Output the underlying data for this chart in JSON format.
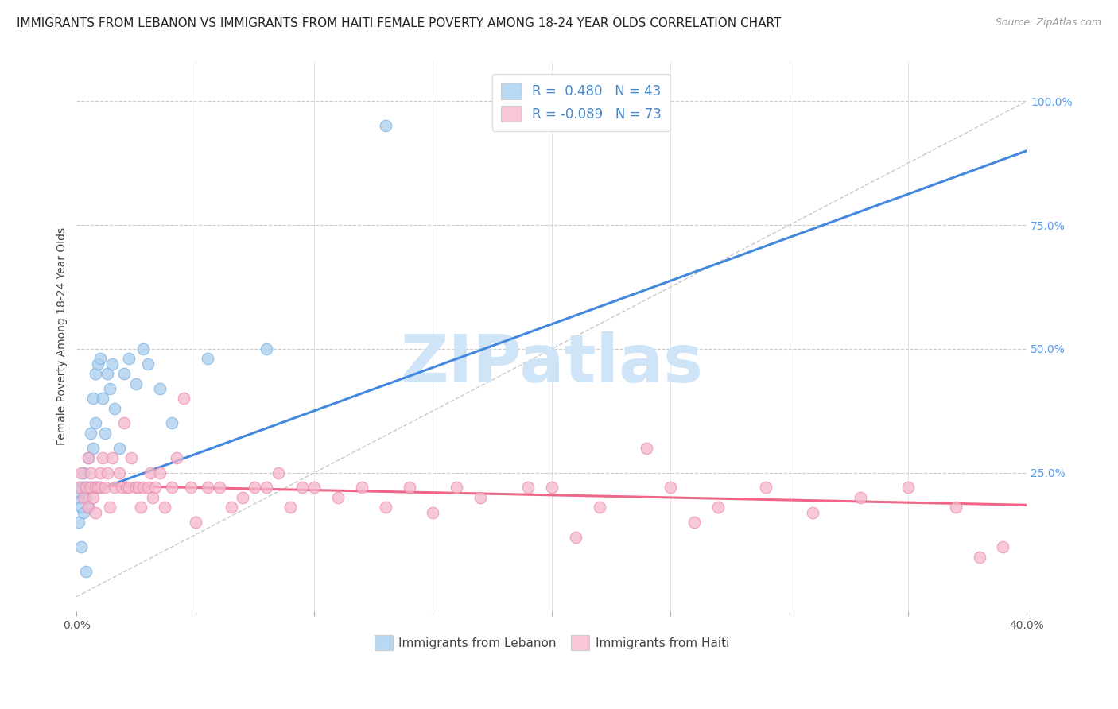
{
  "title": "IMMIGRANTS FROM LEBANON VS IMMIGRANTS FROM HAITI FEMALE POVERTY AMONG 18-24 YEAR OLDS CORRELATION CHART",
  "source": "Source: ZipAtlas.com",
  "ylabel": "Female Poverty Among 18-24 Year Olds",
  "xlim": [
    0.0,
    0.4
  ],
  "ylim": [
    -0.03,
    1.08
  ],
  "xticks": [
    0.0,
    0.05,
    0.1,
    0.15,
    0.2,
    0.25,
    0.3,
    0.35,
    0.4
  ],
  "ytick_right_labels": [
    "100.0%",
    "75.0%",
    "50.0%",
    "25.0%"
  ],
  "ytick_right_values": [
    1.0,
    0.75,
    0.5,
    0.25
  ],
  "lebanon_color": "#A8CEF0",
  "haiti_color": "#F5B8CC",
  "lebanon_edge": "#7AAEDD",
  "haiti_edge": "#EE88AA",
  "blue_line_color": "#4488DD",
  "pink_line_color": "#EE6688",
  "ref_line_color": "#C8C8C8",
  "legend_box_blue": "#B8D8F4",
  "legend_box_pink": "#F8C8D8",
  "R_lebanon": 0.48,
  "N_lebanon": 43,
  "R_haiti": -0.089,
  "N_haiti": 73,
  "watermark": "ZIPatlas",
  "watermark_color": "#D0E4F8",
  "background_color": "#FFFFFF",
  "title_fontsize": 11,
  "axis_label_fontsize": 10,
  "tick_fontsize": 10,
  "legend_fontsize": 12,
  "blue_line_x0": 0.0,
  "blue_line_y0": 0.2,
  "blue_line_x1": 0.4,
  "blue_line_y1": 0.9,
  "pink_line_x0": 0.0,
  "pink_line_y0": 0.225,
  "pink_line_x1": 0.4,
  "pink_line_y1": 0.185,
  "lebanon_scatter_x": [
    0.001,
    0.001,
    0.002,
    0.002,
    0.002,
    0.003,
    0.003,
    0.003,
    0.004,
    0.004,
    0.004,
    0.005,
    0.005,
    0.005,
    0.006,
    0.006,
    0.007,
    0.007,
    0.007,
    0.008,
    0.008,
    0.008,
    0.009,
    0.009,
    0.01,
    0.01,
    0.011,
    0.012,
    0.013,
    0.014,
    0.015,
    0.016,
    0.018,
    0.02,
    0.022,
    0.025,
    0.028,
    0.03,
    0.035,
    0.04,
    0.055,
    0.08,
    0.13
  ],
  "lebanon_scatter_y": [
    0.2,
    0.15,
    0.22,
    0.18,
    0.1,
    0.22,
    0.25,
    0.17,
    0.22,
    0.2,
    0.05,
    0.22,
    0.28,
    0.18,
    0.22,
    0.33,
    0.22,
    0.3,
    0.4,
    0.22,
    0.35,
    0.45,
    0.22,
    0.47,
    0.22,
    0.48,
    0.4,
    0.33,
    0.45,
    0.42,
    0.47,
    0.38,
    0.3,
    0.45,
    0.48,
    0.43,
    0.5,
    0.47,
    0.42,
    0.35,
    0.48,
    0.5,
    0.95
  ],
  "haiti_scatter_x": [
    0.001,
    0.002,
    0.003,
    0.004,
    0.005,
    0.005,
    0.006,
    0.006,
    0.007,
    0.008,
    0.008,
    0.009,
    0.01,
    0.01,
    0.011,
    0.012,
    0.013,
    0.014,
    0.015,
    0.016,
    0.018,
    0.019,
    0.02,
    0.021,
    0.022,
    0.023,
    0.025,
    0.026,
    0.027,
    0.028,
    0.03,
    0.031,
    0.032,
    0.033,
    0.035,
    0.037,
    0.04,
    0.042,
    0.045,
    0.048,
    0.05,
    0.055,
    0.06,
    0.065,
    0.07,
    0.075,
    0.08,
    0.085,
    0.09,
    0.095,
    0.1,
    0.11,
    0.12,
    0.13,
    0.14,
    0.15,
    0.16,
    0.17,
    0.19,
    0.2,
    0.22,
    0.24,
    0.25,
    0.27,
    0.29,
    0.31,
    0.33,
    0.35,
    0.37,
    0.39,
    0.21,
    0.26,
    0.38
  ],
  "haiti_scatter_y": [
    0.22,
    0.25,
    0.2,
    0.22,
    0.28,
    0.18,
    0.25,
    0.22,
    0.2,
    0.22,
    0.17,
    0.22,
    0.25,
    0.22,
    0.28,
    0.22,
    0.25,
    0.18,
    0.28,
    0.22,
    0.25,
    0.22,
    0.35,
    0.22,
    0.22,
    0.28,
    0.22,
    0.22,
    0.18,
    0.22,
    0.22,
    0.25,
    0.2,
    0.22,
    0.25,
    0.18,
    0.22,
    0.28,
    0.4,
    0.22,
    0.15,
    0.22,
    0.22,
    0.18,
    0.2,
    0.22,
    0.22,
    0.25,
    0.18,
    0.22,
    0.22,
    0.2,
    0.22,
    0.18,
    0.22,
    0.17,
    0.22,
    0.2,
    0.22,
    0.22,
    0.18,
    0.3,
    0.22,
    0.18,
    0.22,
    0.17,
    0.2,
    0.22,
    0.18,
    0.1,
    0.12,
    0.15,
    0.08
  ]
}
